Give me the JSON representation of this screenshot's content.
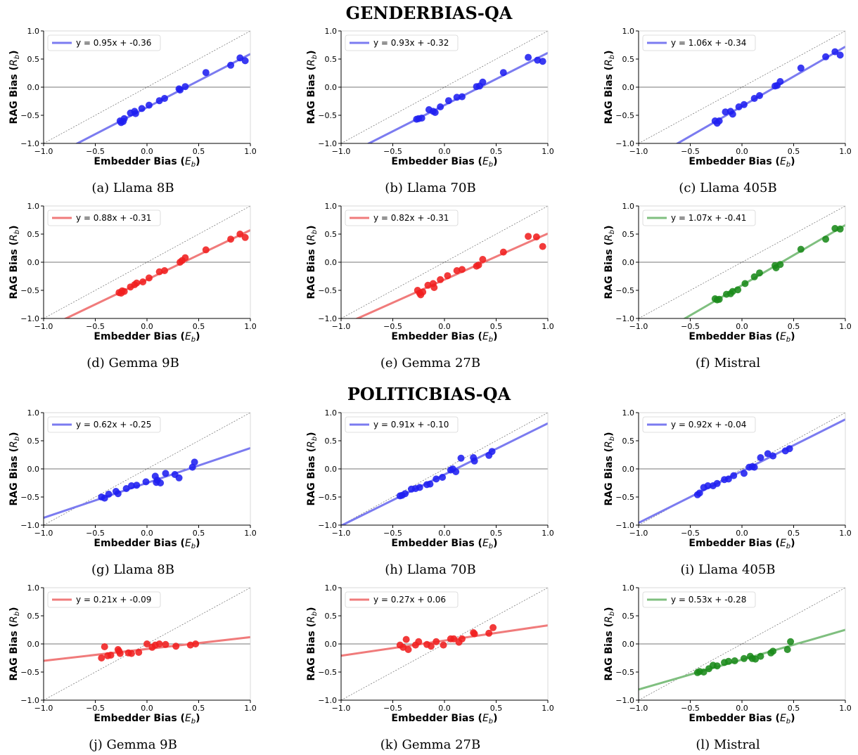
{
  "sections": [
    {
      "title_a": "G",
      "title_b": "ENDER",
      "title_c": "B",
      "title_d": "IAS",
      "title_e": "-QA"
    },
    {
      "title_a": "P",
      "title_b": "OLITIC",
      "title_c": "B",
      "title_d": "IAS",
      "title_e": "-QA"
    }
  ],
  "colors": {
    "blue": "#1f1ff0",
    "blue_line": "#7b7bf0",
    "red": "#f01f1f",
    "red_line": "#f07b7b",
    "green": "#1a8a1a",
    "green_line": "#7fbf7f"
  },
  "chart_data": [
    {
      "type": "scatter",
      "caption": "(a) Llama 8B",
      "color": "blue",
      "legend": "y = 0.95x + -0.36",
      "slope": 0.95,
      "intercept": -0.36,
      "xlabel": "Embedder Bias (E_b)",
      "ylabel": "RAG Bias (R_b)",
      "xlim": [
        -1,
        1
      ],
      "ylim": [
        -1,
        1
      ],
      "legend_position": "top-left",
      "points": [
        [
          -0.26,
          -0.6
        ],
        [
          -0.25,
          -0.63
        ],
        [
          -0.23,
          -0.61
        ],
        [
          -0.22,
          -0.56
        ],
        [
          -0.16,
          -0.46
        ],
        [
          -0.12,
          -0.43
        ],
        [
          -0.11,
          -0.47
        ],
        [
          -0.05,
          -0.38
        ],
        [
          0.02,
          -0.32
        ],
        [
          0.12,
          -0.24
        ],
        [
          0.17,
          -0.2
        ],
        [
          0.31,
          -0.03
        ],
        [
          0.32,
          -0.05
        ],
        [
          0.37,
          0.01
        ],
        [
          0.57,
          0.26
        ],
        [
          0.81,
          0.39
        ],
        [
          0.9,
          0.52
        ],
        [
          0.95,
          0.47
        ]
      ]
    },
    {
      "type": "scatter",
      "caption": "(b) Llama 70B",
      "color": "blue",
      "legend": "y = 0.93x + -0.32",
      "slope": 0.93,
      "intercept": -0.32,
      "xlabel": "Embedder Bias (E_b)",
      "ylabel": "RAG Bias (R_b)",
      "xlim": [
        -1,
        1
      ],
      "ylim": [
        -1,
        1
      ],
      "legend_position": "top-left",
      "points": [
        [
          -0.27,
          -0.57
        ],
        [
          -0.25,
          -0.56
        ],
        [
          -0.22,
          -0.55
        ],
        [
          -0.15,
          -0.4
        ],
        [
          -0.11,
          -0.43
        ],
        [
          -0.09,
          -0.45
        ],
        [
          -0.04,
          -0.35
        ],
        [
          0.04,
          -0.24
        ],
        [
          0.12,
          -0.18
        ],
        [
          0.17,
          -0.17
        ],
        [
          0.31,
          0.01
        ],
        [
          0.34,
          0.02
        ],
        [
          0.37,
          0.09
        ],
        [
          0.57,
          0.26
        ],
        [
          0.81,
          0.53
        ],
        [
          0.9,
          0.48
        ],
        [
          0.95,
          0.46
        ]
      ]
    },
    {
      "type": "scatter",
      "caption": "(c) Llama 405B",
      "color": "blue",
      "legend": "y = 1.06x + -0.34",
      "slope": 1.06,
      "intercept": -0.34,
      "xlabel": "Embedder Bias (E_b)",
      "ylabel": "RAG Bias (R_b)",
      "xlim": [
        -1,
        1
      ],
      "ylim": [
        -1,
        1
      ],
      "legend_position": "top-left",
      "points": [
        [
          -0.26,
          -0.6
        ],
        [
          -0.24,
          -0.64
        ],
        [
          -0.22,
          -0.6
        ],
        [
          -0.16,
          -0.44
        ],
        [
          -0.11,
          -0.43
        ],
        [
          -0.09,
          -0.48
        ],
        [
          -0.03,
          -0.35
        ],
        [
          0.02,
          -0.31
        ],
        [
          0.12,
          -0.2
        ],
        [
          0.17,
          -0.15
        ],
        [
          0.32,
          0.02
        ],
        [
          0.34,
          0.03
        ],
        [
          0.37,
          0.1
        ],
        [
          0.57,
          0.34
        ],
        [
          0.81,
          0.54
        ],
        [
          0.9,
          0.63
        ],
        [
          0.95,
          0.57
        ]
      ]
    },
    {
      "type": "scatter",
      "caption": "(d) Gemma 9B",
      "color": "red",
      "legend": "y = 0.88x + -0.31",
      "slope": 0.88,
      "intercept": -0.31,
      "xlabel": "Embedder Bias (E_b)",
      "ylabel": "RAG Bias (R_b)",
      "xlim": [
        -1,
        1
      ],
      "ylim": [
        -1,
        1
      ],
      "legend_position": "top-left",
      "points": [
        [
          -0.27,
          -0.54
        ],
        [
          -0.25,
          -0.55
        ],
        [
          -0.24,
          -0.51
        ],
        [
          -0.22,
          -0.52
        ],
        [
          -0.16,
          -0.44
        ],
        [
          -0.12,
          -0.4
        ],
        [
          -0.1,
          -0.37
        ],
        [
          -0.04,
          -0.35
        ],
        [
          0.02,
          -0.28
        ],
        [
          0.12,
          -0.17
        ],
        [
          0.17,
          -0.15
        ],
        [
          0.32,
          0.0
        ],
        [
          0.34,
          0.03
        ],
        [
          0.37,
          0.08
        ],
        [
          0.57,
          0.22
        ],
        [
          0.81,
          0.41
        ],
        [
          0.9,
          0.5
        ],
        [
          0.95,
          0.44
        ]
      ]
    },
    {
      "type": "scatter",
      "caption": "(e) Gemma 27B",
      "color": "red",
      "legend": "y = 0.82x + -0.31",
      "slope": 0.82,
      "intercept": -0.31,
      "xlabel": "Embedder Bias (E_b)",
      "ylabel": "RAG Bias (R_b)",
      "xlim": [
        -1,
        1
      ],
      "ylim": [
        -1,
        1
      ],
      "legend_position": "top-left",
      "points": [
        [
          -0.26,
          -0.5
        ],
        [
          -0.24,
          -0.55
        ],
        [
          -0.23,
          -0.58
        ],
        [
          -0.21,
          -0.53
        ],
        [
          -0.16,
          -0.41
        ],
        [
          -0.11,
          -0.38
        ],
        [
          -0.1,
          -0.45
        ],
        [
          -0.04,
          -0.31
        ],
        [
          0.03,
          -0.24
        ],
        [
          0.12,
          -0.15
        ],
        [
          0.17,
          -0.13
        ],
        [
          0.31,
          -0.07
        ],
        [
          0.33,
          -0.05
        ],
        [
          0.37,
          0.05
        ],
        [
          0.57,
          0.18
        ],
        [
          0.81,
          0.46
        ],
        [
          0.89,
          0.45
        ],
        [
          0.95,
          0.28
        ]
      ]
    },
    {
      "type": "scatter",
      "caption": "(f) Mistral",
      "color": "green",
      "legend": "y = 1.07x + -0.41",
      "slope": 1.07,
      "intercept": -0.41,
      "xlabel": "Embedder Bias (E_b)",
      "ylabel": "RAG Bias (R_b)",
      "xlim": [
        -1,
        1
      ],
      "ylim": [
        -1,
        1
      ],
      "legend_position": "top-left",
      "points": [
        [
          -0.26,
          -0.65
        ],
        [
          -0.24,
          -0.67
        ],
        [
          -0.22,
          -0.66
        ],
        [
          -0.15,
          -0.57
        ],
        [
          -0.11,
          -0.56
        ],
        [
          -0.09,
          -0.52
        ],
        [
          -0.04,
          -0.49
        ],
        [
          0.03,
          -0.38
        ],
        [
          0.12,
          -0.26
        ],
        [
          0.17,
          -0.19
        ],
        [
          0.32,
          -0.06
        ],
        [
          0.33,
          -0.1
        ],
        [
          0.37,
          -0.04
        ],
        [
          0.57,
          0.23
        ],
        [
          0.81,
          0.41
        ],
        [
          0.9,
          0.6
        ],
        [
          0.95,
          0.59
        ]
      ]
    },
    {
      "type": "scatter",
      "caption": "(g) Llama 8B",
      "color": "blue",
      "legend": "y = 0.62x + -0.25",
      "slope": 0.62,
      "intercept": -0.25,
      "xlabel": "Embedder Bias (E_b)",
      "ylabel": "RAG Bias (R_b)",
      "xlim": [
        -1,
        1
      ],
      "ylim": [
        -1,
        1
      ],
      "legend_position": "top-left",
      "points": [
        [
          -0.44,
          -0.5
        ],
        [
          -0.41,
          -0.52
        ],
        [
          -0.37,
          -0.45
        ],
        [
          -0.3,
          -0.4
        ],
        [
          -0.28,
          -0.44
        ],
        [
          -0.2,
          -0.35
        ],
        [
          -0.15,
          -0.3
        ],
        [
          -0.1,
          -0.29
        ],
        [
          -0.01,
          -0.23
        ],
        [
          0.08,
          -0.13
        ],
        [
          0.09,
          -0.24
        ],
        [
          0.1,
          -0.2
        ],
        [
          0.13,
          -0.25
        ],
        [
          0.18,
          -0.08
        ],
        [
          0.27,
          -0.1
        ],
        [
          0.31,
          -0.16
        ],
        [
          0.44,
          0.03
        ],
        [
          0.46,
          0.12
        ]
      ]
    },
    {
      "type": "scatter",
      "caption": "(h) Llama 70B",
      "color": "blue",
      "legend": "y = 0.91x + -0.10",
      "slope": 0.91,
      "intercept": -0.1,
      "xlabel": "Embedder Bias (E_b)",
      "ylabel": "RAG Bias (R_b)",
      "xlim": [
        -1,
        1
      ],
      "ylim": [
        -1,
        1
      ],
      "legend_position": "top-left",
      "points": [
        [
          -0.43,
          -0.48
        ],
        [
          -0.41,
          -0.47
        ],
        [
          -0.38,
          -0.44
        ],
        [
          -0.32,
          -0.36
        ],
        [
          -0.28,
          -0.35
        ],
        [
          -0.24,
          -0.33
        ],
        [
          -0.17,
          -0.28
        ],
        [
          -0.14,
          -0.27
        ],
        [
          -0.08,
          -0.18
        ],
        [
          -0.02,
          -0.15
        ],
        [
          0.06,
          -0.02
        ],
        [
          0.08,
          0.0
        ],
        [
          0.11,
          -0.05
        ],
        [
          0.16,
          0.19
        ],
        [
          0.28,
          0.2
        ],
        [
          0.29,
          0.14
        ],
        [
          0.43,
          0.24
        ],
        [
          0.46,
          0.31
        ]
      ]
    },
    {
      "type": "scatter",
      "caption": "(i) Llama 405B",
      "color": "blue",
      "legend": "y = 0.92x + -0.04",
      "slope": 0.92,
      "intercept": -0.04,
      "xlabel": "Embedder Bias (E_b)",
      "ylabel": "RAG Bias (R_b)",
      "xlim": [
        -1,
        1
      ],
      "ylim": [
        -1,
        1
      ],
      "legend_position": "top-left",
      "points": [
        [
          -0.43,
          -0.46
        ],
        [
          -0.41,
          -0.43
        ],
        [
          -0.37,
          -0.33
        ],
        [
          -0.33,
          -0.3
        ],
        [
          -0.28,
          -0.3
        ],
        [
          -0.24,
          -0.26
        ],
        [
          -0.17,
          -0.19
        ],
        [
          -0.13,
          -0.18
        ],
        [
          -0.08,
          -0.12
        ],
        [
          0.02,
          -0.08
        ],
        [
          0.07,
          0.03
        ],
        [
          0.1,
          0.04
        ],
        [
          0.12,
          0.03
        ],
        [
          0.18,
          0.2
        ],
        [
          0.25,
          0.27
        ],
        [
          0.3,
          0.23
        ],
        [
          0.42,
          0.32
        ],
        [
          0.46,
          0.36
        ]
      ]
    },
    {
      "type": "scatter",
      "caption": "(j) Gemma 9B",
      "color": "red",
      "legend": "y = 0.21x + -0.09",
      "slope": 0.21,
      "intercept": -0.09,
      "xlabel": "Embedder Bias (E_b)",
      "ylabel": "RAG Bias (R_b)",
      "xlim": [
        -1,
        1
      ],
      "ylim": [
        -1,
        1
      ],
      "legend_position": "top-left",
      "points": [
        [
          -0.44,
          -0.25
        ],
        [
          -0.41,
          -0.05
        ],
        [
          -0.38,
          -0.21
        ],
        [
          -0.35,
          -0.2
        ],
        [
          -0.28,
          -0.1
        ],
        [
          -0.27,
          -0.13
        ],
        [
          -0.26,
          -0.17
        ],
        [
          -0.18,
          -0.16
        ],
        [
          -0.15,
          -0.17
        ],
        [
          -0.08,
          -0.15
        ],
        [
          0.0,
          0.0
        ],
        [
          0.05,
          -0.06
        ],
        [
          0.08,
          -0.02
        ],
        [
          0.12,
          0.0
        ],
        [
          0.18,
          -0.01
        ],
        [
          0.28,
          -0.04
        ],
        [
          0.42,
          -0.02
        ],
        [
          0.47,
          0.0
        ]
      ]
    },
    {
      "type": "scatter",
      "caption": "(k) Gemma 27B",
      "color": "red",
      "legend": "y = 0.27x + 0.06",
      "slope": 0.27,
      "intercept": 0.06,
      "xlabel": "Embedder Bias (E_b)",
      "ylabel": "RAG Bias (R_b)",
      "xlim": [
        -1,
        1
      ],
      "ylim": [
        -1,
        1
      ],
      "legend_position": "top-left",
      "points": [
        [
          -0.43,
          -0.02
        ],
        [
          -0.4,
          -0.06
        ],
        [
          -0.37,
          0.08
        ],
        [
          -0.35,
          -0.1
        ],
        [
          -0.28,
          -0.02
        ],
        [
          -0.25,
          0.04
        ],
        [
          -0.17,
          -0.01
        ],
        [
          -0.13,
          -0.04
        ],
        [
          -0.08,
          0.04
        ],
        [
          -0.01,
          -0.02
        ],
        [
          0.06,
          0.09
        ],
        [
          0.09,
          0.09
        ],
        [
          0.14,
          0.03
        ],
        [
          0.17,
          0.09
        ],
        [
          0.28,
          0.2
        ],
        [
          0.29,
          0.18
        ],
        [
          0.43,
          0.19
        ],
        [
          0.47,
          0.29
        ]
      ]
    },
    {
      "type": "scatter",
      "caption": "(l) Mistral",
      "color": "green",
      "legend": "y = 0.53x + -0.28",
      "slope": 0.53,
      "intercept": -0.28,
      "xlabel": "Embedder Bias (E_b)",
      "ylabel": "RAG Bias (R_b)",
      "xlim": [
        -1,
        1
      ],
      "ylim": [
        -1,
        1
      ],
      "legend_position": "top-left",
      "points": [
        [
          -0.43,
          -0.51
        ],
        [
          -0.41,
          -0.49
        ],
        [
          -0.37,
          -0.5
        ],
        [
          -0.32,
          -0.44
        ],
        [
          -0.28,
          -0.38
        ],
        [
          -0.24,
          -0.39
        ],
        [
          -0.17,
          -0.33
        ],
        [
          -0.13,
          -0.31
        ],
        [
          -0.07,
          -0.3
        ],
        [
          0.02,
          -0.26
        ],
        [
          0.08,
          -0.22
        ],
        [
          0.1,
          -0.26
        ],
        [
          0.13,
          -0.27
        ],
        [
          0.18,
          -0.22
        ],
        [
          0.28,
          -0.16
        ],
        [
          0.3,
          -0.13
        ],
        [
          0.44,
          -0.1
        ],
        [
          0.47,
          0.04
        ]
      ]
    }
  ]
}
